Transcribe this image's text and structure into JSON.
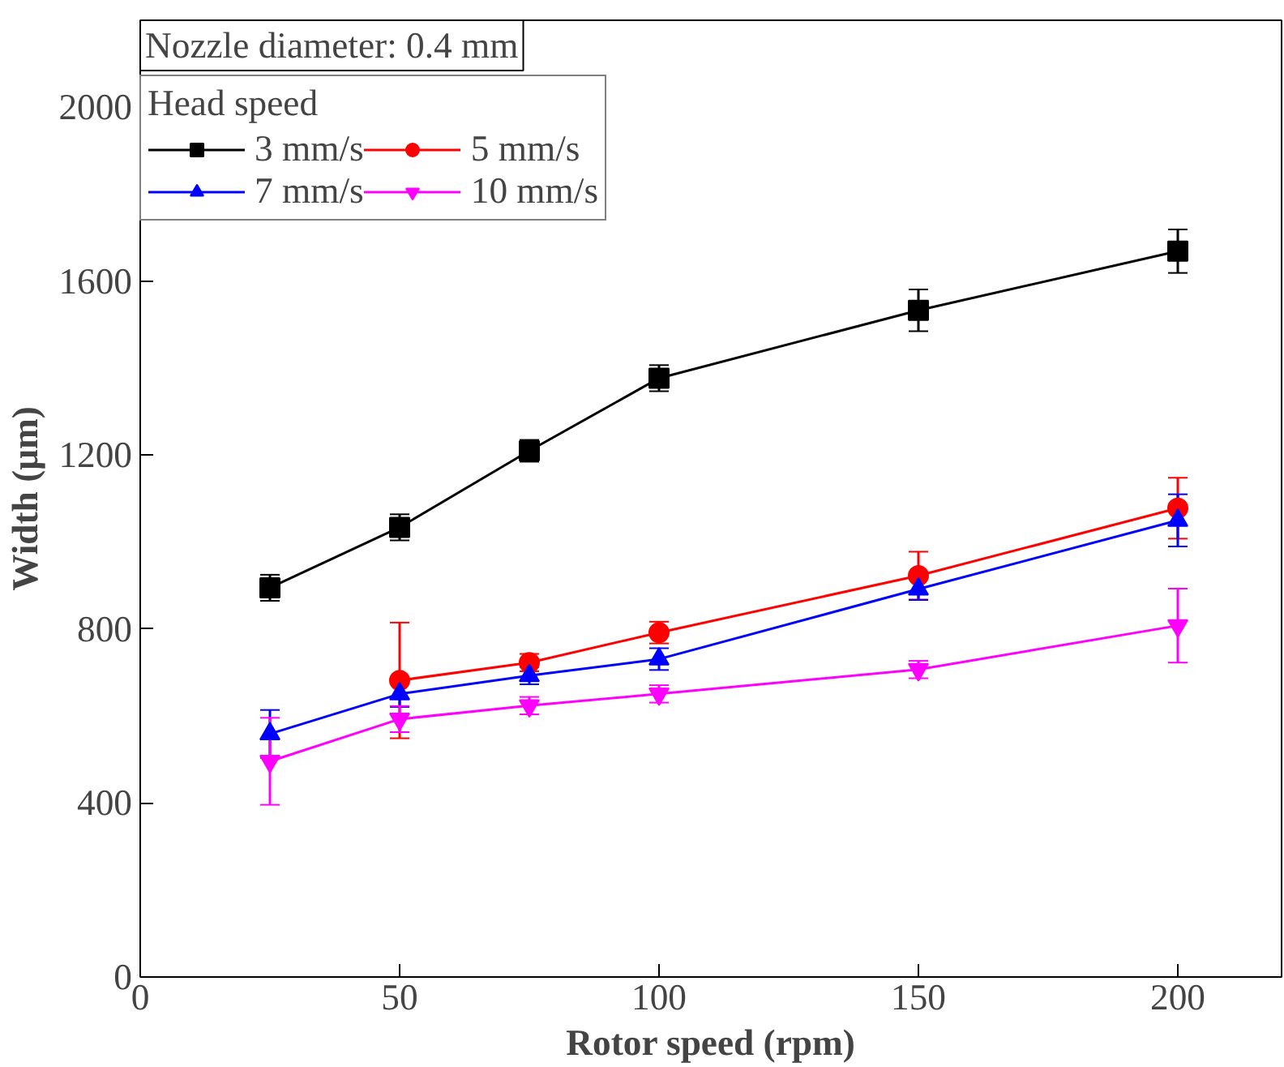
{
  "chart_data": {
    "type": "line",
    "xlabel": "Rotor speed (rpm)",
    "ylabel": "Width (μm)",
    "legend_title": "Head speed",
    "annotations": [
      "Nozzle diameter: 0.4 mm"
    ],
    "x": [
      25,
      50,
      75,
      100,
      150,
      200
    ],
    "xlim": [
      0,
      220
    ],
    "xticks": [
      0,
      50,
      100,
      150,
      200
    ],
    "ylim": [
      0,
      2200
    ],
    "yticks": [
      0,
      400,
      800,
      1200,
      1600,
      2000
    ],
    "grid": false,
    "legend": "top left",
    "line_style": "solid",
    "series": [
      {
        "name": "3 mm/s",
        "color": "#000000",
        "marker": "square",
        "values": [
          895,
          1034,
          1210,
          1377,
          1533,
          1669
        ],
        "errors": [
          30,
          30,
          25,
          30,
          48,
          50
        ]
      },
      {
        "name": "5 mm/s",
        "color": "#ff0000",
        "marker": "circle",
        "values": [
          null,
          682,
          723,
          792,
          923,
          1078
        ],
        "errors": [
          null,
          133,
          20,
          25,
          55,
          70
        ]
      },
      {
        "name": "7 mm/s",
        "color": "#0000ff",
        "marker": "triangle",
        "values": [
          559,
          651,
          693,
          731,
          892,
          1050
        ],
        "errors": [
          55,
          30,
          20,
          25,
          25,
          60
        ]
      },
      {
        "name": "10 mm/s",
        "color": "#ff00ff",
        "marker": "triangle",
        "values": [
          496,
          593,
          624,
          651,
          707,
          808
        ],
        "errors": [
          100,
          30,
          20,
          20,
          20,
          85
        ]
      }
    ]
  }
}
